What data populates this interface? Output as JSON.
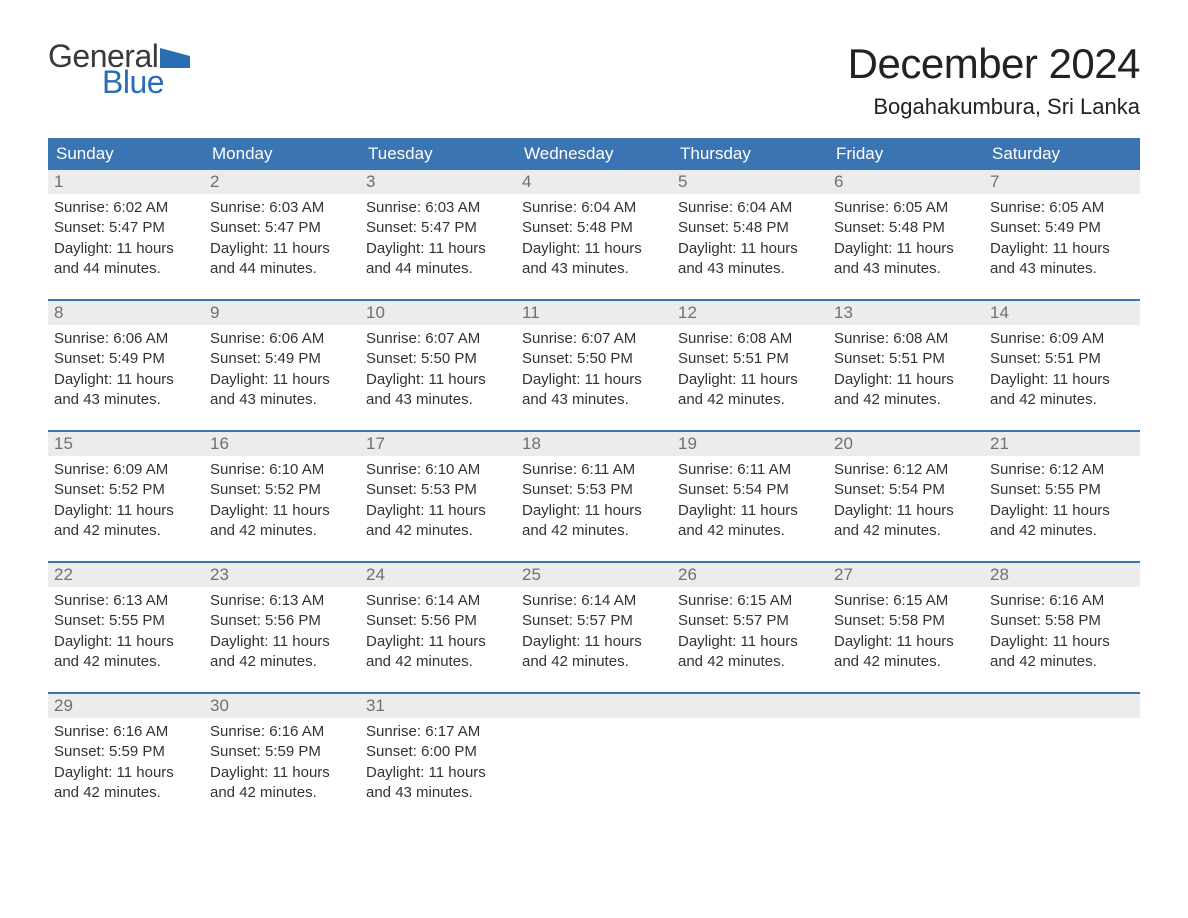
{
  "logo": {
    "line1": "General",
    "line2": "Blue",
    "flag_color": "#2a6db3"
  },
  "header": {
    "month_title": "December 2024",
    "location": "Bogahakumbura, Sri Lanka",
    "title_fontsize": 42,
    "location_fontsize": 22
  },
  "colors": {
    "header_bg": "#3b74b3",
    "header_text": "#ffffff",
    "daynum_bg": "#ececec",
    "daynum_text": "#707070",
    "body_text": "#333333",
    "week_rule": "#3b74b3",
    "page_bg": "#ffffff"
  },
  "day_labels": [
    "Sunday",
    "Monday",
    "Tuesday",
    "Wednesday",
    "Thursday",
    "Friday",
    "Saturday"
  ],
  "strings": {
    "sunrise_label": "Sunrise:",
    "sunset_label": "Sunset:",
    "daylight_label": "Daylight:"
  },
  "weeks": [
    [
      {
        "num": "1",
        "sunrise": "6:02 AM",
        "sunset": "5:47 PM",
        "daylight": "11 hours and 44 minutes."
      },
      {
        "num": "2",
        "sunrise": "6:03 AM",
        "sunset": "5:47 PM",
        "daylight": "11 hours and 44 minutes."
      },
      {
        "num": "3",
        "sunrise": "6:03 AM",
        "sunset": "5:47 PM",
        "daylight": "11 hours and 44 minutes."
      },
      {
        "num": "4",
        "sunrise": "6:04 AM",
        "sunset": "5:48 PM",
        "daylight": "11 hours and 43 minutes."
      },
      {
        "num": "5",
        "sunrise": "6:04 AM",
        "sunset": "5:48 PM",
        "daylight": "11 hours and 43 minutes."
      },
      {
        "num": "6",
        "sunrise": "6:05 AM",
        "sunset": "5:48 PM",
        "daylight": "11 hours and 43 minutes."
      },
      {
        "num": "7",
        "sunrise": "6:05 AM",
        "sunset": "5:49 PM",
        "daylight": "11 hours and 43 minutes."
      }
    ],
    [
      {
        "num": "8",
        "sunrise": "6:06 AM",
        "sunset": "5:49 PM",
        "daylight": "11 hours and 43 minutes."
      },
      {
        "num": "9",
        "sunrise": "6:06 AM",
        "sunset": "5:49 PM",
        "daylight": "11 hours and 43 minutes."
      },
      {
        "num": "10",
        "sunrise": "6:07 AM",
        "sunset": "5:50 PM",
        "daylight": "11 hours and 43 minutes."
      },
      {
        "num": "11",
        "sunrise": "6:07 AM",
        "sunset": "5:50 PM",
        "daylight": "11 hours and 43 minutes."
      },
      {
        "num": "12",
        "sunrise": "6:08 AM",
        "sunset": "5:51 PM",
        "daylight": "11 hours and 42 minutes."
      },
      {
        "num": "13",
        "sunrise": "6:08 AM",
        "sunset": "5:51 PM",
        "daylight": "11 hours and 42 minutes."
      },
      {
        "num": "14",
        "sunrise": "6:09 AM",
        "sunset": "5:51 PM",
        "daylight": "11 hours and 42 minutes."
      }
    ],
    [
      {
        "num": "15",
        "sunrise": "6:09 AM",
        "sunset": "5:52 PM",
        "daylight": "11 hours and 42 minutes."
      },
      {
        "num": "16",
        "sunrise": "6:10 AM",
        "sunset": "5:52 PM",
        "daylight": "11 hours and 42 minutes."
      },
      {
        "num": "17",
        "sunrise": "6:10 AM",
        "sunset": "5:53 PM",
        "daylight": "11 hours and 42 minutes."
      },
      {
        "num": "18",
        "sunrise": "6:11 AM",
        "sunset": "5:53 PM",
        "daylight": "11 hours and 42 minutes."
      },
      {
        "num": "19",
        "sunrise": "6:11 AM",
        "sunset": "5:54 PM",
        "daylight": "11 hours and 42 minutes."
      },
      {
        "num": "20",
        "sunrise": "6:12 AM",
        "sunset": "5:54 PM",
        "daylight": "11 hours and 42 minutes."
      },
      {
        "num": "21",
        "sunrise": "6:12 AM",
        "sunset": "5:55 PM",
        "daylight": "11 hours and 42 minutes."
      }
    ],
    [
      {
        "num": "22",
        "sunrise": "6:13 AM",
        "sunset": "5:55 PM",
        "daylight": "11 hours and 42 minutes."
      },
      {
        "num": "23",
        "sunrise": "6:13 AM",
        "sunset": "5:56 PM",
        "daylight": "11 hours and 42 minutes."
      },
      {
        "num": "24",
        "sunrise": "6:14 AM",
        "sunset": "5:56 PM",
        "daylight": "11 hours and 42 minutes."
      },
      {
        "num": "25",
        "sunrise": "6:14 AM",
        "sunset": "5:57 PM",
        "daylight": "11 hours and 42 minutes."
      },
      {
        "num": "26",
        "sunrise": "6:15 AM",
        "sunset": "5:57 PM",
        "daylight": "11 hours and 42 minutes."
      },
      {
        "num": "27",
        "sunrise": "6:15 AM",
        "sunset": "5:58 PM",
        "daylight": "11 hours and 42 minutes."
      },
      {
        "num": "28",
        "sunrise": "6:16 AM",
        "sunset": "5:58 PM",
        "daylight": "11 hours and 42 minutes."
      }
    ],
    [
      {
        "num": "29",
        "sunrise": "6:16 AM",
        "sunset": "5:59 PM",
        "daylight": "11 hours and 42 minutes."
      },
      {
        "num": "30",
        "sunrise": "6:16 AM",
        "sunset": "5:59 PM",
        "daylight": "11 hours and 42 minutes."
      },
      {
        "num": "31",
        "sunrise": "6:17 AM",
        "sunset": "6:00 PM",
        "daylight": "11 hours and 43 minutes."
      },
      {
        "empty": true
      },
      {
        "empty": true
      },
      {
        "empty": true
      },
      {
        "empty": true
      }
    ]
  ]
}
